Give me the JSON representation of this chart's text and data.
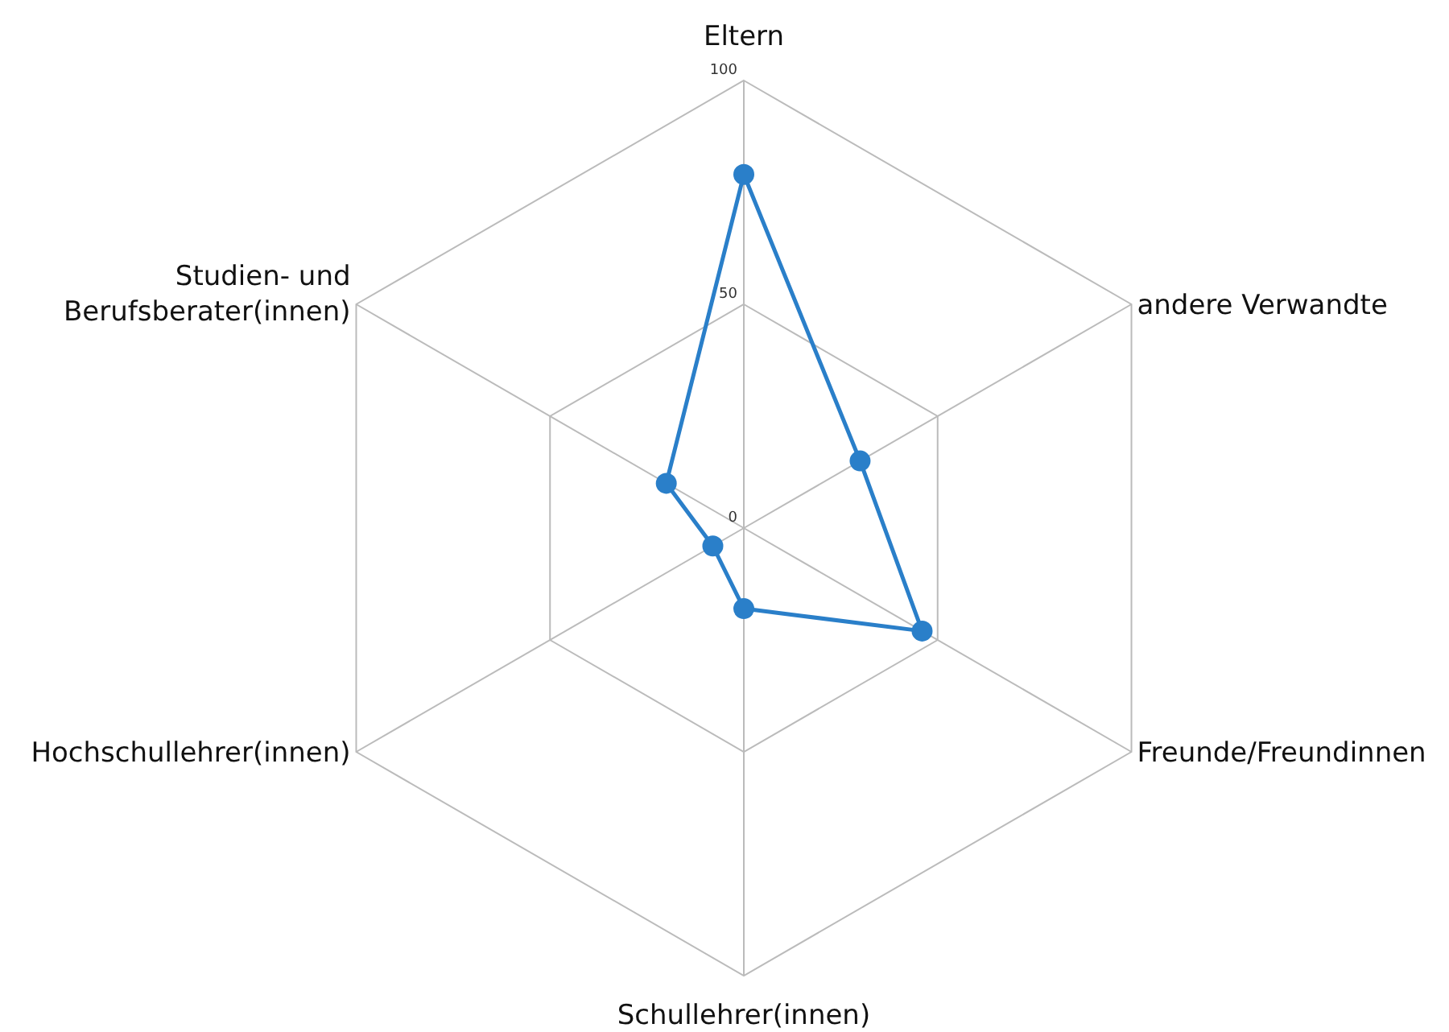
{
  "chart_data": {
    "type": "radar",
    "categories": [
      "Eltern",
      "andere Verwandte",
      "Freunde/Freundinnen",
      "Schullehrer(innen)",
      "Hochschullehrer(innen)",
      "Studien- und Berufsberater(innen)"
    ],
    "series": [
      {
        "color": "#2a7fc9",
        "values": [
          79,
          30,
          46,
          18,
          8,
          20
        ]
      }
    ],
    "ylim": [
      0,
      100
    ],
    "yticks": [
      0,
      50,
      100
    ],
    "grid": true,
    "marker": "circle",
    "line_style": "solid"
  }
}
